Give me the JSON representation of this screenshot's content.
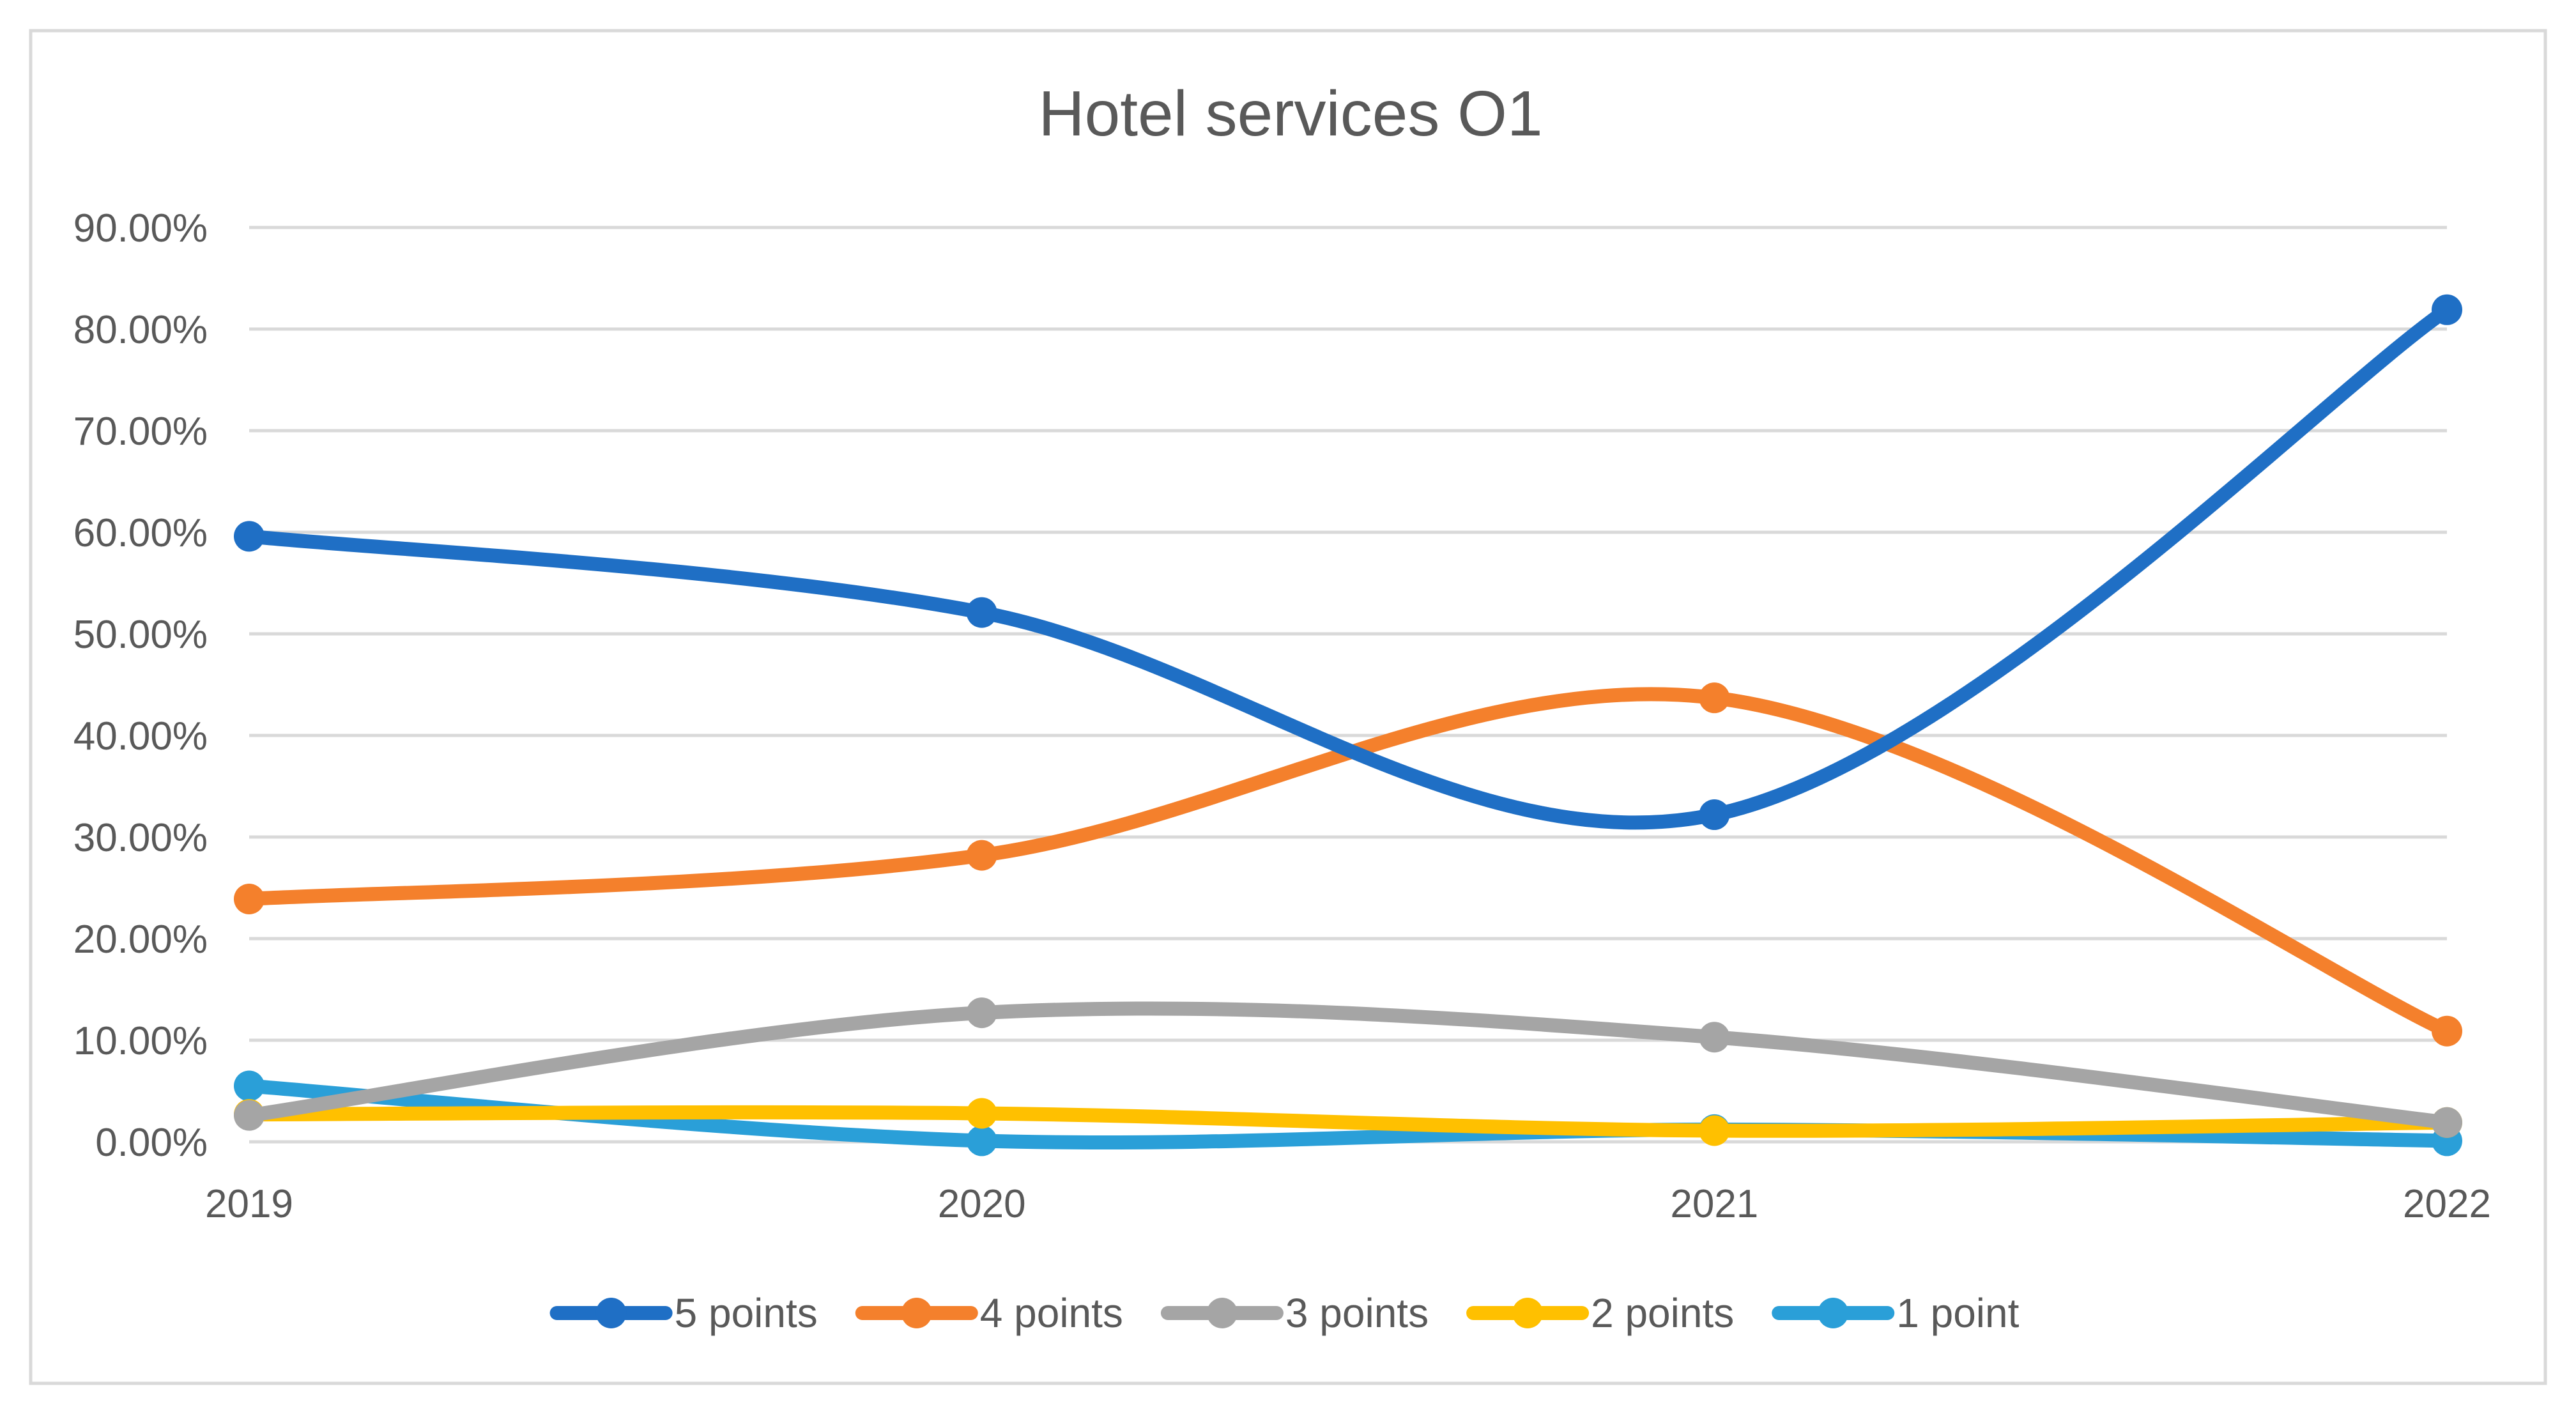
{
  "chart_data": {
    "type": "line",
    "title": "Hotel services O1",
    "xlabel": "",
    "ylabel": "",
    "categories": [
      "2019",
      "2020",
      "2021",
      "2022"
    ],
    "ylim": [
      0,
      90
    ],
    "yticks": [
      0,
      10,
      20,
      30,
      40,
      50,
      60,
      70,
      80,
      90
    ],
    "ytick_labels": [
      "0.00%",
      "10.00%",
      "20.00%",
      "30.00%",
      "40.00%",
      "50.00%",
      "60.00%",
      "70.00%",
      "80.00%",
      "90.00%"
    ],
    "grid": true,
    "smooth": true,
    "legend_position": "bottom",
    "series": [
      {
        "name": "5 points",
        "color": "#1f6fc5",
        "values": [
          59.6,
          52.1,
          32.2,
          81.9
        ]
      },
      {
        "name": "4 points",
        "color": "#f4802c",
        "values": [
          23.9,
          28.2,
          43.7,
          10.9
        ]
      },
      {
        "name": "3 points",
        "color": "#a5a5a5",
        "values": [
          2.6,
          12.7,
          10.3,
          1.9
        ]
      },
      {
        "name": "2 points",
        "color": "#ffc000",
        "values": [
          2.7,
          2.8,
          1.1,
          1.9
        ]
      },
      {
        "name": "1 point",
        "color": "#2a9fd8",
        "values": [
          5.5,
          0.1,
          1.2,
          0.1
        ]
      }
    ]
  }
}
